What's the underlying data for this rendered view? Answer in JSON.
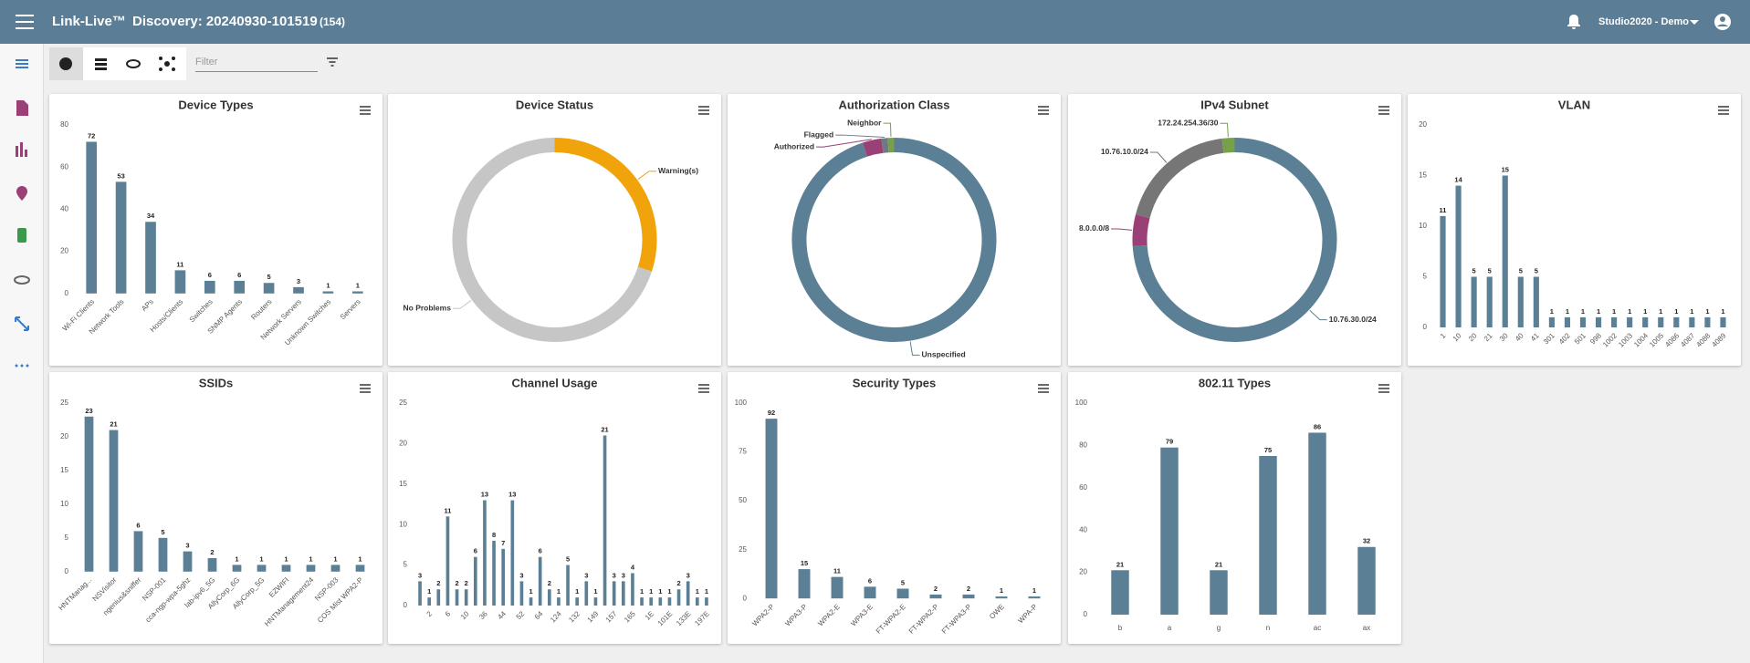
{
  "header": {
    "app_name": "Link-Live™",
    "discovery": "Discovery: 20240930-101519",
    "count": "(154)",
    "user": "Studio2020 - Demo"
  },
  "toolbar": {
    "filter_placeholder": "Filter"
  },
  "chart_data": [
    {
      "type": "bar",
      "title": "Device Types",
      "categories": [
        "Wi-Fi Clients",
        "Network Tools",
        "APs",
        "Hosts/Clients",
        "Switches",
        "SNMP Agents",
        "Routers",
        "Network Servers",
        "Unknown Switches",
        "Servers"
      ],
      "values": [
        72,
        53,
        34,
        11,
        6,
        6,
        5,
        3,
        1,
        1
      ],
      "color": "#5b7f95",
      "ylim": [
        0,
        80
      ],
      "yticks": [
        0,
        20,
        40,
        60,
        80
      ]
    },
    {
      "type": "pie",
      "title": "Device Status",
      "categories": [
        "Warning(s)",
        "No Problems"
      ],
      "values": [
        30,
        70
      ],
      "colors": [
        "#f0a30a",
        "#c6c6c6"
      ]
    },
    {
      "type": "pie",
      "title": "Authorization Class",
      "categories": [
        "Unspecified",
        "Authorized",
        "Flagged",
        "Neighbor"
      ],
      "values": [
        95,
        3,
        1,
        1
      ],
      "colors": [
        "#5b7f95",
        "#9b3f77",
        "#6f7a80",
        "#76a04a"
      ]
    },
    {
      "type": "pie",
      "title": "IPv4 Subnet",
      "categories": [
        "10.76.30.0/24",
        "8.0.0.0/8",
        "10.76.10.0/24",
        "172.24.254.36/30"
      ],
      "values": [
        74,
        5,
        19,
        2
      ],
      "colors": [
        "#5b7f95",
        "#9b3f77",
        "#767676",
        "#76a04a"
      ]
    },
    {
      "type": "bar",
      "title": "VLAN",
      "categories": [
        "1",
        "10",
        "20",
        "21",
        "30",
        "40",
        "41",
        "301",
        "402",
        "501",
        "998",
        "1002",
        "1003",
        "1004",
        "1005",
        "4086",
        "4087",
        "4088",
        "4089"
      ],
      "values": [
        11,
        14,
        5,
        5,
        15,
        5,
        5,
        1,
        1,
        1,
        1,
        1,
        1,
        1,
        1,
        1,
        1,
        1,
        1
      ],
      "color": "#5b7f95",
      "ylim": [
        0,
        20
      ],
      "yticks": [
        0,
        5,
        10,
        15,
        20
      ]
    },
    {
      "type": "bar",
      "title": "SSIDs",
      "categories": [
        "HNTManag...",
        "NSVisitor",
        "ngenius&sniffer",
        "NSP-001",
        "cca-ngp-wpa-5ghz",
        "lab-ipv6_5G",
        "AllyCorp_6G",
        "AllyCorp_5G",
        "EZWIFI",
        "HNTManagement24",
        "NSP-003",
        "COS Mist WPA2-P"
      ],
      "values": [
        23,
        21,
        6,
        5,
        3,
        2,
        1,
        1,
        1,
        1,
        1,
        1
      ],
      "color": "#5b7f95",
      "ylim": [
        0,
        25
      ],
      "yticks": [
        0,
        5,
        10,
        15,
        20,
        25
      ]
    },
    {
      "type": "bar",
      "title": "Channel Usage",
      "categories": [
        null,
        "2",
        null,
        "6",
        null,
        "10",
        null,
        "36",
        null,
        "44",
        null,
        "52",
        null,
        "64",
        null,
        "124",
        null,
        "132",
        null,
        "149",
        null,
        "157",
        null,
        "165",
        null,
        "1E",
        null,
        "101E",
        null,
        "133E",
        null,
        "197E"
      ],
      "values": [
        3,
        1,
        2,
        11,
        2,
        2,
        6,
        13,
        8,
        7,
        13,
        3,
        1,
        6,
        2,
        1,
        5,
        1,
        3,
        1,
        21,
        3,
        3,
        4,
        1,
        1,
        1,
        1,
        2,
        3,
        1,
        1
      ],
      "color": "#5b7f95",
      "ylim": [
        0,
        25
      ],
      "yticks": [
        0,
        5,
        10,
        15,
        20,
        25
      ]
    },
    {
      "type": "bar",
      "title": "Security Types",
      "categories": [
        "WPA2-P",
        "WPA3-P",
        "WPA2-E",
        "WPA3-E",
        "FT-WPA2-E",
        "FT-WPA2-P",
        "FT-WPA3-P",
        "OWE",
        "WPA-P"
      ],
      "values": [
        92,
        15,
        11,
        6,
        5,
        2,
        2,
        1,
        1
      ],
      "color": "#5b7f95",
      "ylim": [
        0,
        100
      ],
      "yticks": [
        0,
        25,
        50,
        75,
        100
      ]
    },
    {
      "type": "bar",
      "title": "802.11 Types",
      "categories": [
        "b",
        "a",
        "g",
        "n",
        "ac",
        "ax"
      ],
      "values": [
        21,
        79,
        21,
        75,
        86,
        32
      ],
      "color": "#5b7f95",
      "ylim": [
        0,
        100
      ],
      "yticks": [
        0,
        20,
        40,
        60,
        80,
        100
      ]
    }
  ]
}
